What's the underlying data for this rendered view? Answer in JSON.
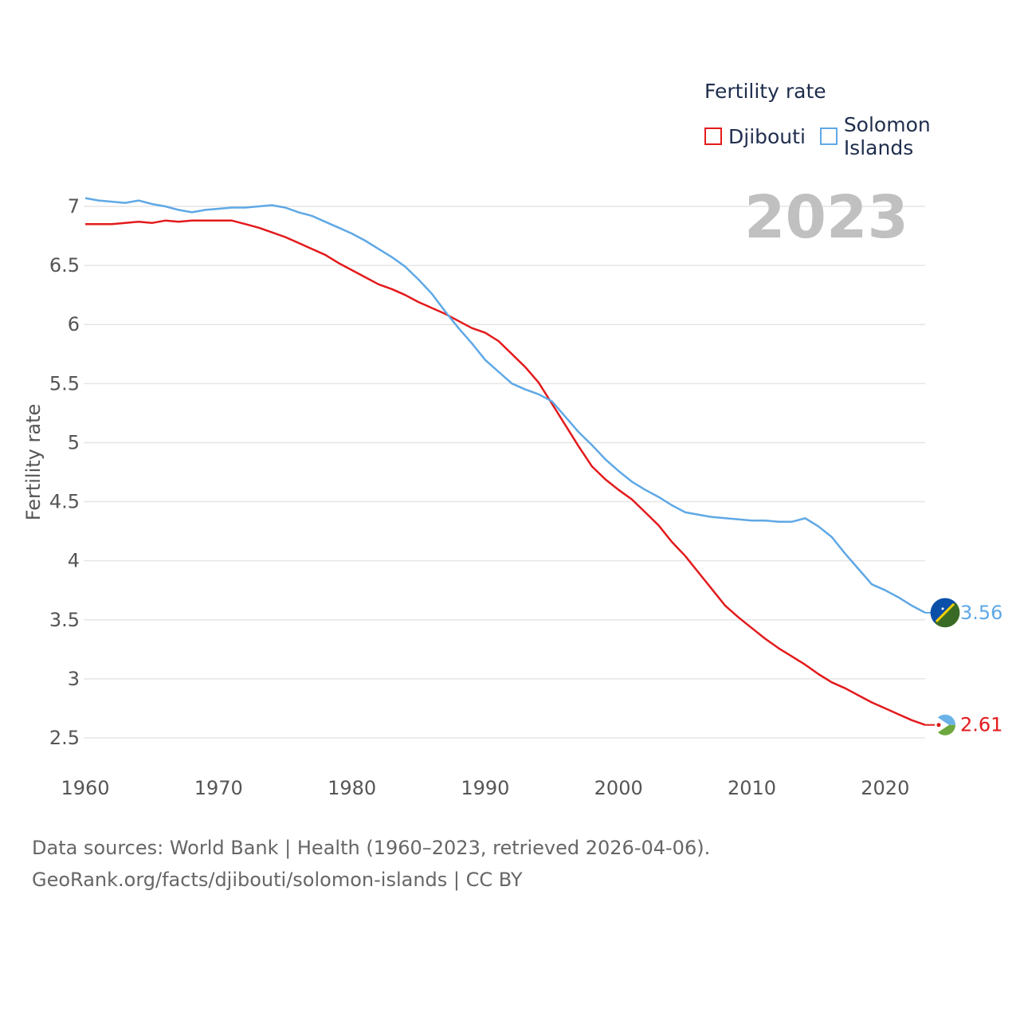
{
  "legend": {
    "title": "Fertility rate",
    "items": [
      {
        "label": "Djibouti",
        "color": "#e31a1c"
      },
      {
        "label": "Solomon Islands",
        "color": "#5fa8e6"
      }
    ]
  },
  "footer": {
    "line1": "Data sources: World Bank | Health (1960–2023, retrieved 2026-04-06).",
    "line2": "GeoRank.org/facts/djibouti/solomon-islands | CC BY"
  },
  "chart_data": {
    "type": "line",
    "title": "Fertility rate",
    "year_label": "2023",
    "xlabel": "",
    "ylabel": "Fertility rate",
    "xlim": [
      1960,
      2023
    ],
    "ylim": [
      2.4,
      7.1
    ],
    "x_ticks": [
      1960,
      1970,
      1980,
      1990,
      2000,
      2010,
      2020
    ],
    "y_ticks": [
      2.5,
      3,
      3.5,
      4,
      4.5,
      5,
      5.5,
      6,
      6.5,
      7
    ],
    "y_tick_labels": [
      "2.5",
      "3",
      "3.5",
      "4",
      "4.5",
      "5",
      "5.5",
      "6",
      "6.5",
      "7"
    ],
    "grid": true,
    "x": [
      1960,
      1961,
      1962,
      1963,
      1964,
      1965,
      1966,
      1967,
      1968,
      1969,
      1970,
      1971,
      1972,
      1973,
      1974,
      1975,
      1976,
      1977,
      1978,
      1979,
      1980,
      1981,
      1982,
      1983,
      1984,
      1985,
      1986,
      1987,
      1988,
      1989,
      1990,
      1991,
      1992,
      1993,
      1994,
      1995,
      1996,
      1997,
      1998,
      1999,
      2000,
      2001,
      2002,
      2003,
      2004,
      2005,
      2006,
      2007,
      2008,
      2009,
      2010,
      2011,
      2012,
      2013,
      2014,
      2015,
      2016,
      2017,
      2018,
      2019,
      2020,
      2021,
      2022,
      2023
    ],
    "series": [
      {
        "name": "Djibouti",
        "color": "#e31a1c",
        "end_label": "2.61",
        "values": [
          6.85,
          6.85,
          6.85,
          6.86,
          6.87,
          6.86,
          6.88,
          6.87,
          6.88,
          6.88,
          6.88,
          6.88,
          6.85,
          6.82,
          6.78,
          6.74,
          6.69,
          6.64,
          6.59,
          6.52,
          6.46,
          6.4,
          6.34,
          6.3,
          6.25,
          6.19,
          6.14,
          6.09,
          6.03,
          5.97,
          5.93,
          5.86,
          5.75,
          5.64,
          5.51,
          5.33,
          5.15,
          4.97,
          4.8,
          4.69,
          4.6,
          4.52,
          4.41,
          4.3,
          4.16,
          4.04,
          3.9,
          3.76,
          3.62,
          3.52,
          3.43,
          3.34,
          3.26,
          3.19,
          3.12,
          3.04,
          2.97,
          2.92,
          2.86,
          2.8,
          2.75,
          2.7,
          2.65,
          2.61
        ]
      },
      {
        "name": "Solomon Islands",
        "color": "#5fa8e6",
        "end_label": "3.56",
        "values": [
          7.07,
          7.05,
          7.04,
          7.03,
          7.05,
          7.02,
          7.0,
          6.97,
          6.95,
          6.97,
          6.98,
          6.99,
          6.99,
          7.0,
          7.01,
          6.99,
          6.95,
          6.92,
          6.87,
          6.82,
          6.77,
          6.71,
          6.64,
          6.57,
          6.49,
          6.38,
          6.26,
          6.11,
          5.97,
          5.84,
          5.7,
          5.6,
          5.5,
          5.45,
          5.41,
          5.35,
          5.22,
          5.09,
          4.98,
          4.86,
          4.76,
          4.67,
          4.6,
          4.54,
          4.47,
          4.41,
          4.39,
          4.37,
          4.36,
          4.35,
          4.34,
          4.34,
          4.33,
          4.33,
          4.36,
          4.29,
          4.2,
          4.06,
          3.93,
          3.8,
          3.75,
          3.69,
          3.62,
          3.56
        ]
      }
    ]
  }
}
